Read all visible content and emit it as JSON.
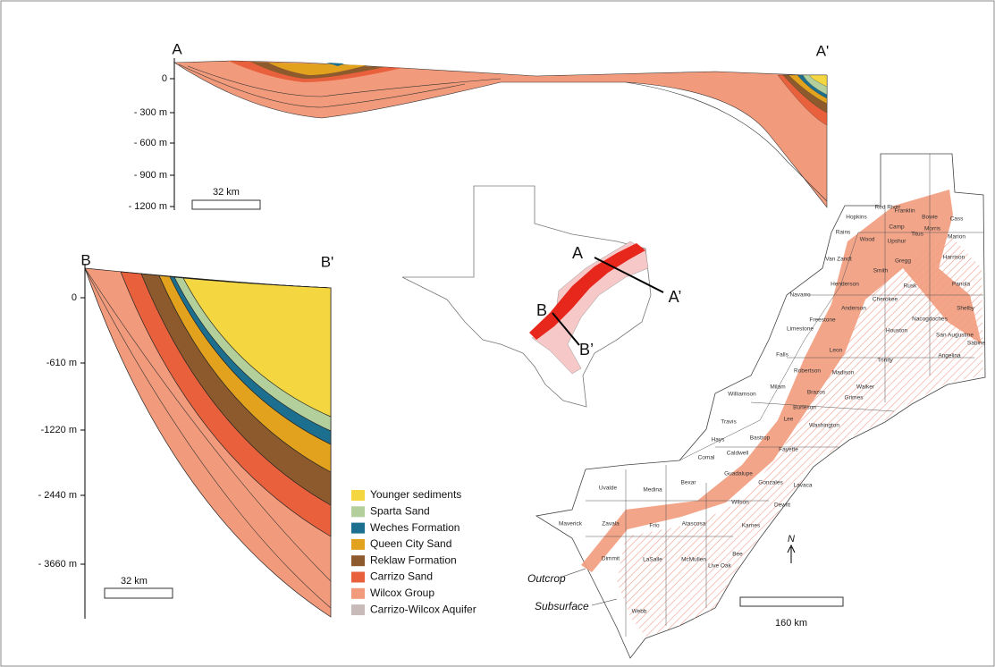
{
  "cross_section_a": {
    "start_label": "A",
    "end_label": "A'",
    "depth_ticks": [
      "0",
      "- 300 m",
      "- 600 m",
      "- 900 m",
      "- 1200 m"
    ],
    "scale_bar": "32 km"
  },
  "cross_section_b": {
    "start_label": "B",
    "end_label": "B'",
    "depth_ticks": [
      "0",
      "-610 m",
      "-1220 m",
      "- 2440 m",
      "- 3660 m"
    ],
    "scale_bar": "32 km"
  },
  "legend": [
    {
      "label": "Younger sediments",
      "color": "#f3d640"
    },
    {
      "label": "Sparta Sand",
      "color": "#b3cf9c"
    },
    {
      "label": "Weches Formation",
      "color": "#1c6f8f"
    },
    {
      "label": "Queen City Sand",
      "color": "#e2a21e"
    },
    {
      "label": "Reklaw Formation",
      "color": "#8c5a2c"
    },
    {
      "label": "Carrizo Sand",
      "color": "#e9613c"
    },
    {
      "label": "Wilcox Group",
      "color": "#f29b7c"
    },
    {
      "label": "Carrizo-Wilcox Aquifer",
      "color": "#c9baba"
    }
  ],
  "inset_map": {
    "section_labels": [
      "A",
      "A’",
      "B",
      "B’"
    ]
  },
  "county_map": {
    "counties": [
      "Red River",
      "Bowie",
      "Franklin",
      "Titus",
      "Morris",
      "Cass",
      "Hopkins",
      "Camp",
      "Rains",
      "Wood",
      "Upshur",
      "Marion",
      "Van Zandt",
      "Gregg",
      "Harrison",
      "Smith",
      "Henderson",
      "Rusk",
      "Panola",
      "Navarro",
      "Cherokee",
      "Anderson",
      "Nacogdoches",
      "Shelby",
      "Freestone",
      "Limestone",
      "Houston",
      "San Augustine",
      "Sabine",
      "Leon",
      "Angelina",
      "Trinity",
      "Falls",
      "Robertson",
      "Madison",
      "Milam",
      "Brazos",
      "Grimes",
      "Walker",
      "Williamson",
      "Burleson",
      "Travis",
      "Lee",
      "Washington",
      "Hays",
      "Bastrop",
      "Fayette",
      "Comal",
      "Caldwell",
      "Guadalupe",
      "Gonzales",
      "Lavaca",
      "Bexar",
      "Wilson",
      "Dewitt",
      "Uvalde",
      "Medina",
      "Karnes",
      "Maverick",
      "Zavala",
      "Frio",
      "Atascosa",
      "Dimmit",
      "LaSalle",
      "McMullen",
      "Live Oak",
      "Bee",
      "Webb"
    ],
    "outcrop_label": "Outcrop",
    "subsurface_label": "Subsurface",
    "north_label": "N",
    "scale_bar": "160 km"
  }
}
